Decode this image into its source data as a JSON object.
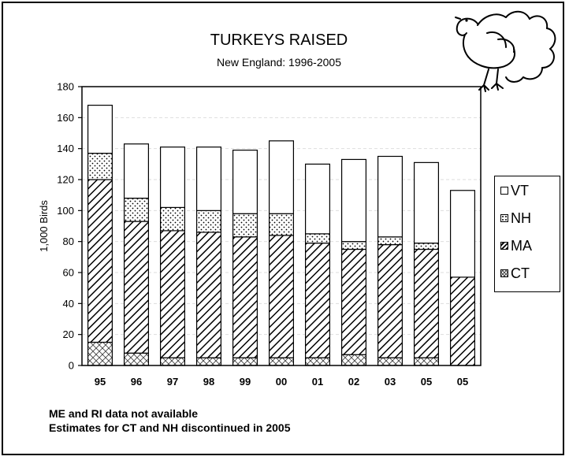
{
  "chart_data": {
    "type": "bar",
    "stacked": true,
    "title": "TURKEYS RAISED",
    "subtitle": "New England: 1996-2005",
    "ylabel": "1,000 Birds",
    "ylim": [
      0,
      180
    ],
    "yticks": [
      0,
      20,
      40,
      60,
      80,
      100,
      120,
      140,
      160,
      180
    ],
    "categories": [
      "95",
      "96",
      "97",
      "98",
      "99",
      "00",
      "01",
      "02",
      "03",
      "05",
      "05"
    ],
    "series": [
      {
        "name": "CT",
        "pattern": "cross-hatch",
        "values": [
          15,
          8,
          5,
          5,
          5,
          5,
          5,
          7,
          5,
          5,
          0
        ]
      },
      {
        "name": "MA",
        "pattern": "diagonal-hatch",
        "values": [
          105,
          85,
          82,
          81,
          78,
          79,
          74,
          68,
          73,
          70,
          57
        ]
      },
      {
        "name": "NH",
        "pattern": "dots",
        "values": [
          17,
          15,
          15,
          14,
          15,
          14,
          6,
          5,
          5,
          4,
          0
        ]
      },
      {
        "name": "VT",
        "pattern": "solid-white",
        "values": [
          31,
          35,
          39,
          41,
          41,
          47,
          45,
          53,
          52,
          52,
          56
        ]
      }
    ],
    "legend_position": "right",
    "grid": true,
    "gridline_color": "#dddddd"
  },
  "legend": [
    {
      "label": "VT",
      "pattern": "solid-white"
    },
    {
      "label": "NH",
      "pattern": "dots"
    },
    {
      "label": "MA",
      "pattern": "diagonal-hatch"
    },
    {
      "label": "CT",
      "pattern": "cross-hatch"
    }
  ],
  "notes": [
    "ME and RI data not available",
    "Estimates for CT and NH discontinued in 2005"
  ]
}
